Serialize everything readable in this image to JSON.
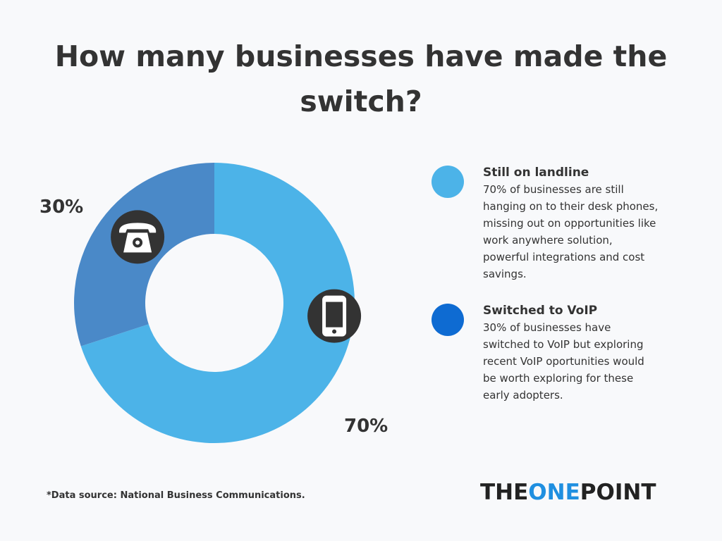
{
  "title_lines": [
    "How many businesses have made the",
    "switch?"
  ],
  "chart_data": {
    "type": "pie",
    "title": "How many businesses have made the switch?",
    "slices": [
      {
        "label": "Still on landline",
        "value": 70,
        "value_label": "70%",
        "color": "#4cb3e8",
        "icon": "mobile-phone-icon",
        "description": "70% of businesses are still hanging on to their desk phones, missing out on opportunities like work anywhere solution, powerful integrations and cost savings."
      },
      {
        "label": "Switched to VoIP",
        "value": 30,
        "value_label": "30%",
        "color": "#4a89c8",
        "icon": "telephone-icon",
        "description": "30% of businesses have switched to VoIP but exploring recent VoIP oportunities would be worth exploring for these early adopters."
      }
    ],
    "legend_placement": "right"
  },
  "legend": [
    {
      "heading": "Still on landline",
      "lines": [
        "70% of businesses are still",
        "hanging on to their desk phones,",
        "missing out on opportunities like",
        "work anywhere solution,",
        "powerful integrations and cost",
        "savings."
      ],
      "color": "#4cb3e8"
    },
    {
      "heading": "Switched to VoIP",
      "lines": [
        "30% of businesses have",
        "switched to VoIP but exploring",
        "recent VoIP oportunities would",
        "be worth exploring for these",
        "early adopters."
      ],
      "color": "#0e6bd2"
    }
  ],
  "footnote": "*Data source: National Business Communications.",
  "logo": {
    "part1": "THE",
    "part2": "ONE",
    "part3": "POINT",
    "accent_color": "#1f8fe0"
  },
  "icon_bg_color": "#333333"
}
